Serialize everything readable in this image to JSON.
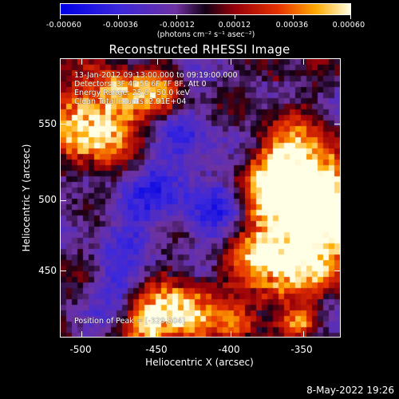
{
  "colorbar": {
    "tick_labels": [
      "-0.00060",
      "-0.00036",
      "-0.00012",
      "0.00012",
      "0.00036",
      "0.00060"
    ],
    "units_label": "(photons cm⁻² s⁻¹ asec⁻²)",
    "min": -0.0006,
    "max": 0.0006
  },
  "title": "Reconstructed RHESSI Image",
  "info": {
    "time_range": "13-Jan-2012 09:13:00.000 to 09:19:00.000",
    "detectors": "Detectors: 3F 4F 5F 6F 7F 8F, Att 0",
    "energy_range": "Energy Range: 25.0 - 50.0 keV",
    "method_counts": "Clean    Total counts: 2.91E+04",
    "peak_position": "Position of Peak = [-329,504]"
  },
  "axes": {
    "xlabel": "Heliocentric X (arcsec)",
    "ylabel": "Heliocentric Y (arcsec)",
    "xticks": [
      "-500",
      "-450",
      "-400",
      "-350"
    ],
    "yticks": [
      "550",
      "500",
      "450"
    ],
    "x_values": [
      -500,
      -450,
      -400,
      -350
    ],
    "y_values": [
      550,
      500,
      450
    ]
  },
  "footer": {
    "datestamp": "8-May-2022 19:26"
  },
  "colors": {
    "background": "#000000",
    "foreground": "#ffffff"
  }
}
